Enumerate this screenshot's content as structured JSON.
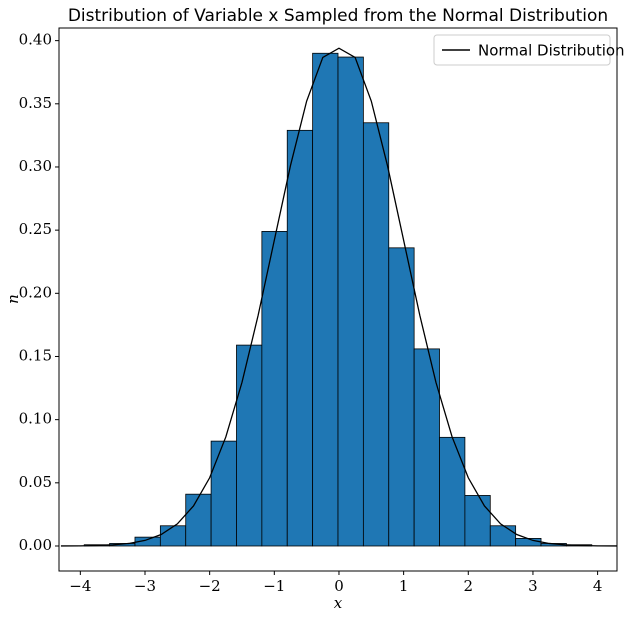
{
  "chart_data": {
    "type": "histogram",
    "title": "Distribution of Variable x Sampled from the Normal Distribution",
    "x_label": "x",
    "y_label": "n",
    "bins": [
      -3.94,
      -3.5475,
      -3.155,
      -2.7625,
      -2.37,
      -1.9775,
      -1.585,
      -1.1925,
      -0.8,
      -0.4075,
      -0.015,
      0.3775,
      0.77,
      1.1625,
      1.555,
      1.9475,
      2.34,
      2.7325,
      3.125,
      3.5175,
      3.91
    ],
    "values": [
      0.001,
      0.002,
      0.007,
      0.016,
      0.041,
      0.083,
      0.159,
      0.249,
      0.329,
      0.39,
      0.387,
      0.335,
      0.236,
      0.156,
      0.086,
      0.04,
      0.016,
      0.006,
      0.002,
      0.001
    ],
    "color": "#1f77b4",
    "overlay": {
      "type": "line",
      "name": "Normal Distribution",
      "color": "#000000",
      "x": [
        -4.3,
        -4,
        -3.75,
        -3.5,
        -3.25,
        -3,
        -2.75,
        -2.5,
        -2.25,
        -2,
        -1.75,
        -1.5,
        -1.25,
        -1,
        -0.75,
        -0.5,
        -0.25,
        0,
        0.25,
        0.5,
        0.75,
        1,
        1.25,
        1.5,
        1.75,
        2,
        2.25,
        2.5,
        2.75,
        3,
        3.25,
        3.5,
        3.75,
        4,
        4.3
      ],
      "y": [
        4e-05,
        0.0001,
        0.0004,
        0.0009,
        0.002,
        0.0044,
        0.0091,
        0.0175,
        0.0317,
        0.054,
        0.0863,
        0.1295,
        0.1826,
        0.242,
        0.3011,
        0.3521,
        0.3867,
        0.394,
        0.3867,
        0.3521,
        0.3011,
        0.242,
        0.1826,
        0.1295,
        0.0863,
        0.054,
        0.0317,
        0.0175,
        0.0091,
        0.0044,
        0.002,
        0.0009,
        0.0004,
        0.0001,
        4e-05
      ]
    },
    "legend": "upper right",
    "xlim": [
      -4.33,
      4.3
    ],
    "xticks": [
      {
        "value": -4,
        "label": "−4"
      },
      {
        "value": -3,
        "label": "−3"
      },
      {
        "value": -2,
        "label": "−2"
      },
      {
        "value": -1,
        "label": "−1"
      },
      0,
      1,
      2,
      3,
      4
    ],
    "ylim": [
      -0.0198,
      0.41
    ],
    "yticks": [
      {
        "value": 0,
        "label": "0.00"
      },
      {
        "value": 0.05,
        "label": "0.05"
      },
      {
        "value": 0.1,
        "label": "0.10"
      },
      {
        "value": 0.15,
        "label": "0.15"
      },
      {
        "value": 0.2,
        "label": "0.20"
      },
      {
        "value": 0.25,
        "label": "0.25"
      },
      {
        "value": 0.3,
        "label": "0.30"
      },
      {
        "value": 0.35,
        "label": "0.35"
      },
      {
        "value": 0.4,
        "label": "0.40"
      }
    ]
  }
}
